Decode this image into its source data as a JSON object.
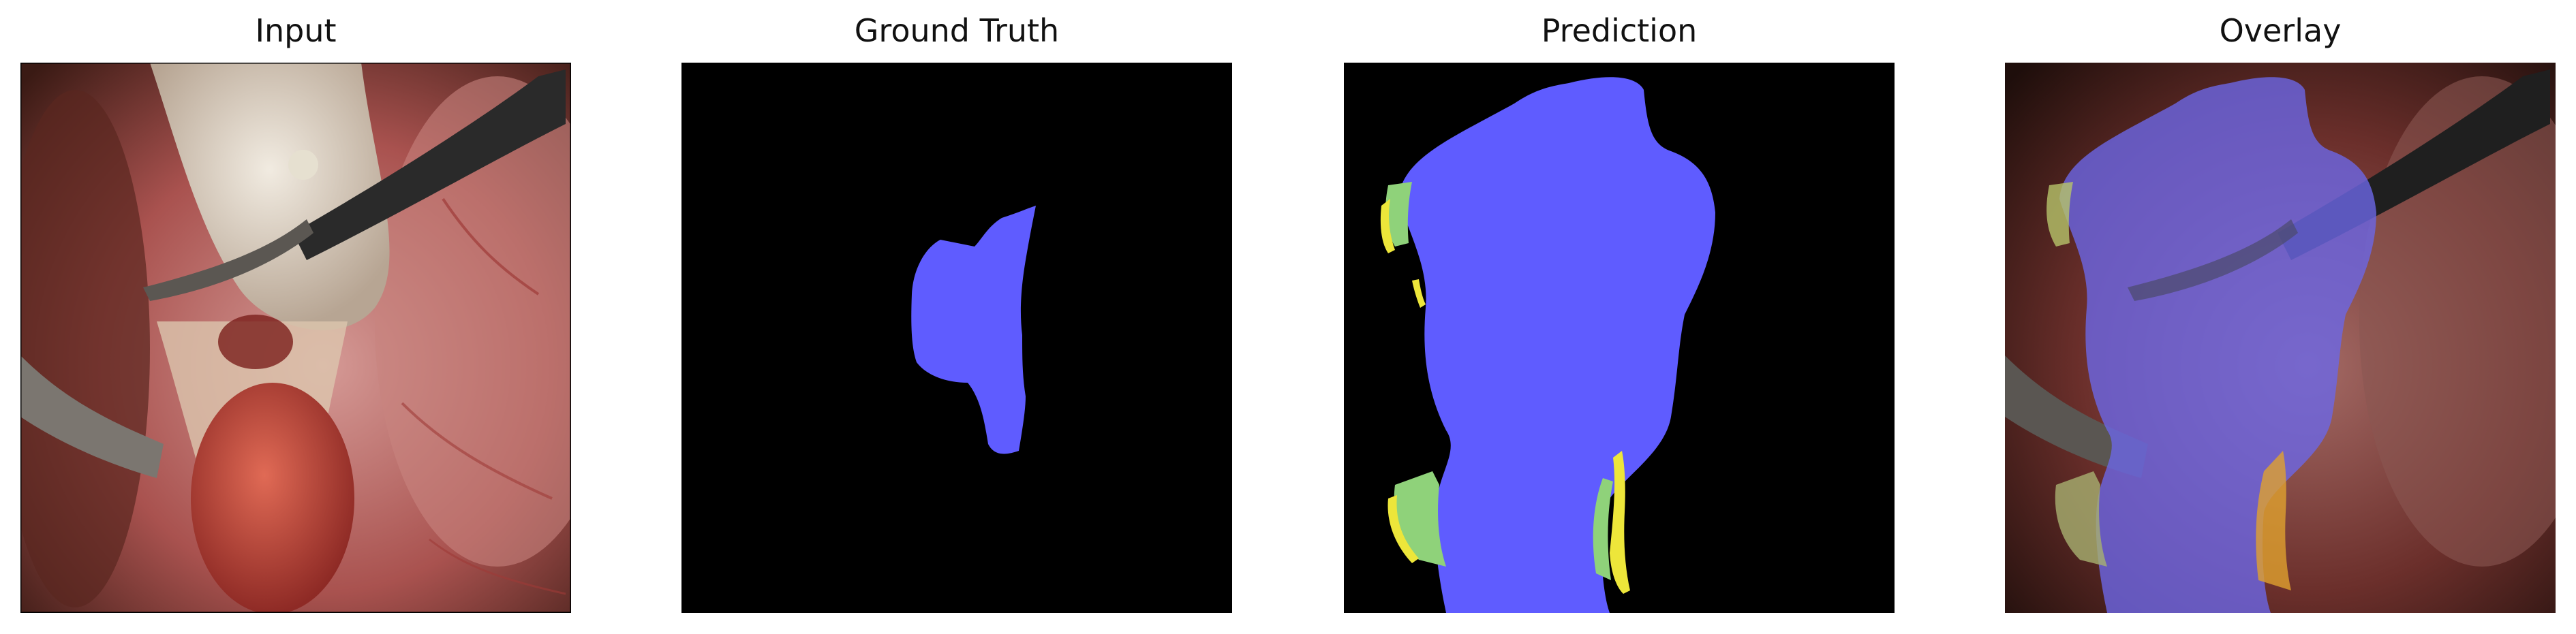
{
  "figure": {
    "panels": [
      {
        "title": "Input"
      },
      {
        "title": "Ground Truth"
      },
      {
        "title": "Prediction"
      },
      {
        "title": "Overlay"
      }
    ]
  },
  "colors": {
    "background": "#000000",
    "class_blue": "#5f5cff",
    "class_green": "#8fd27a",
    "class_yellow": "#ede63a",
    "overlay_orange": "#e0a12e",
    "tissue_dark": "#3a1a14",
    "tissue_red": "#b74a46",
    "tissue_pink": "#cf8f8a",
    "tissue_white": "#e8ddd0",
    "instrument_dark": "#2a2a2a",
    "instrument_metal": "#7b7670"
  }
}
